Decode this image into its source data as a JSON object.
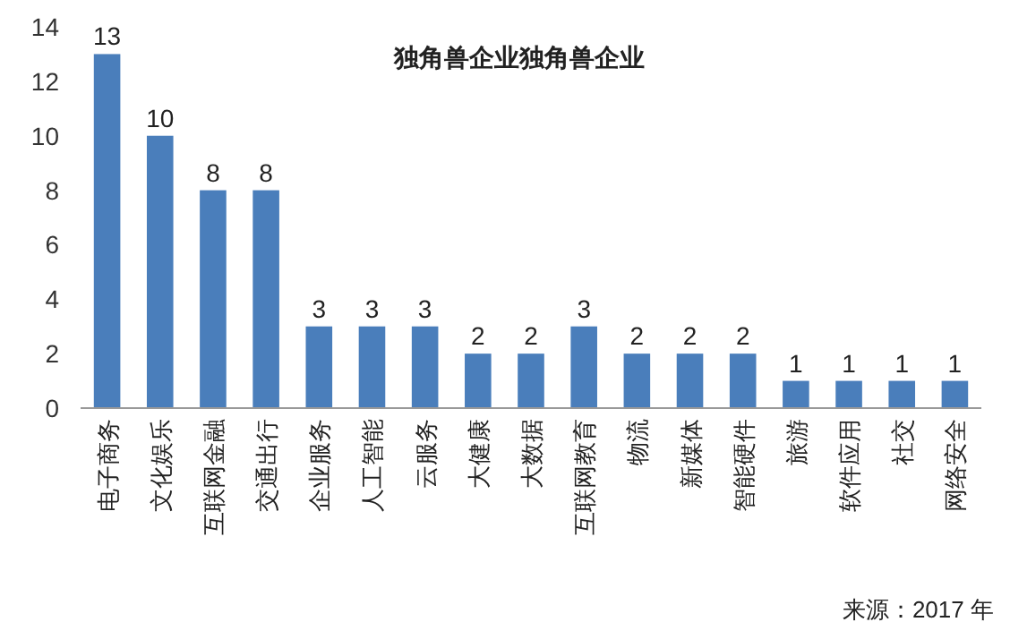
{
  "chart_data": {
    "type": "bar",
    "title": "独角兽企业独角兽企业",
    "categories": [
      "电子商务",
      "文化娱乐",
      "互联网金融",
      "交通出行",
      "企业服务",
      "人工智能",
      "云服务",
      "大健康",
      "大数据",
      "互联网教育",
      "物流",
      "新媒体",
      "智能硬件",
      "旅游",
      "软件应用",
      "社交",
      "网络安全"
    ],
    "values": [
      13,
      10,
      8,
      8,
      3,
      3,
      3,
      2,
      2,
      3,
      2,
      2,
      2,
      1,
      1,
      1,
      1
    ],
    "color": "#4a7ebb",
    "ylim": [
      0,
      14
    ],
    "yticks": [
      0,
      2,
      4,
      6,
      8,
      10,
      12,
      14
    ],
    "grid": false,
    "data_labels": true,
    "annotations": [
      "来源：2017 年"
    ]
  }
}
